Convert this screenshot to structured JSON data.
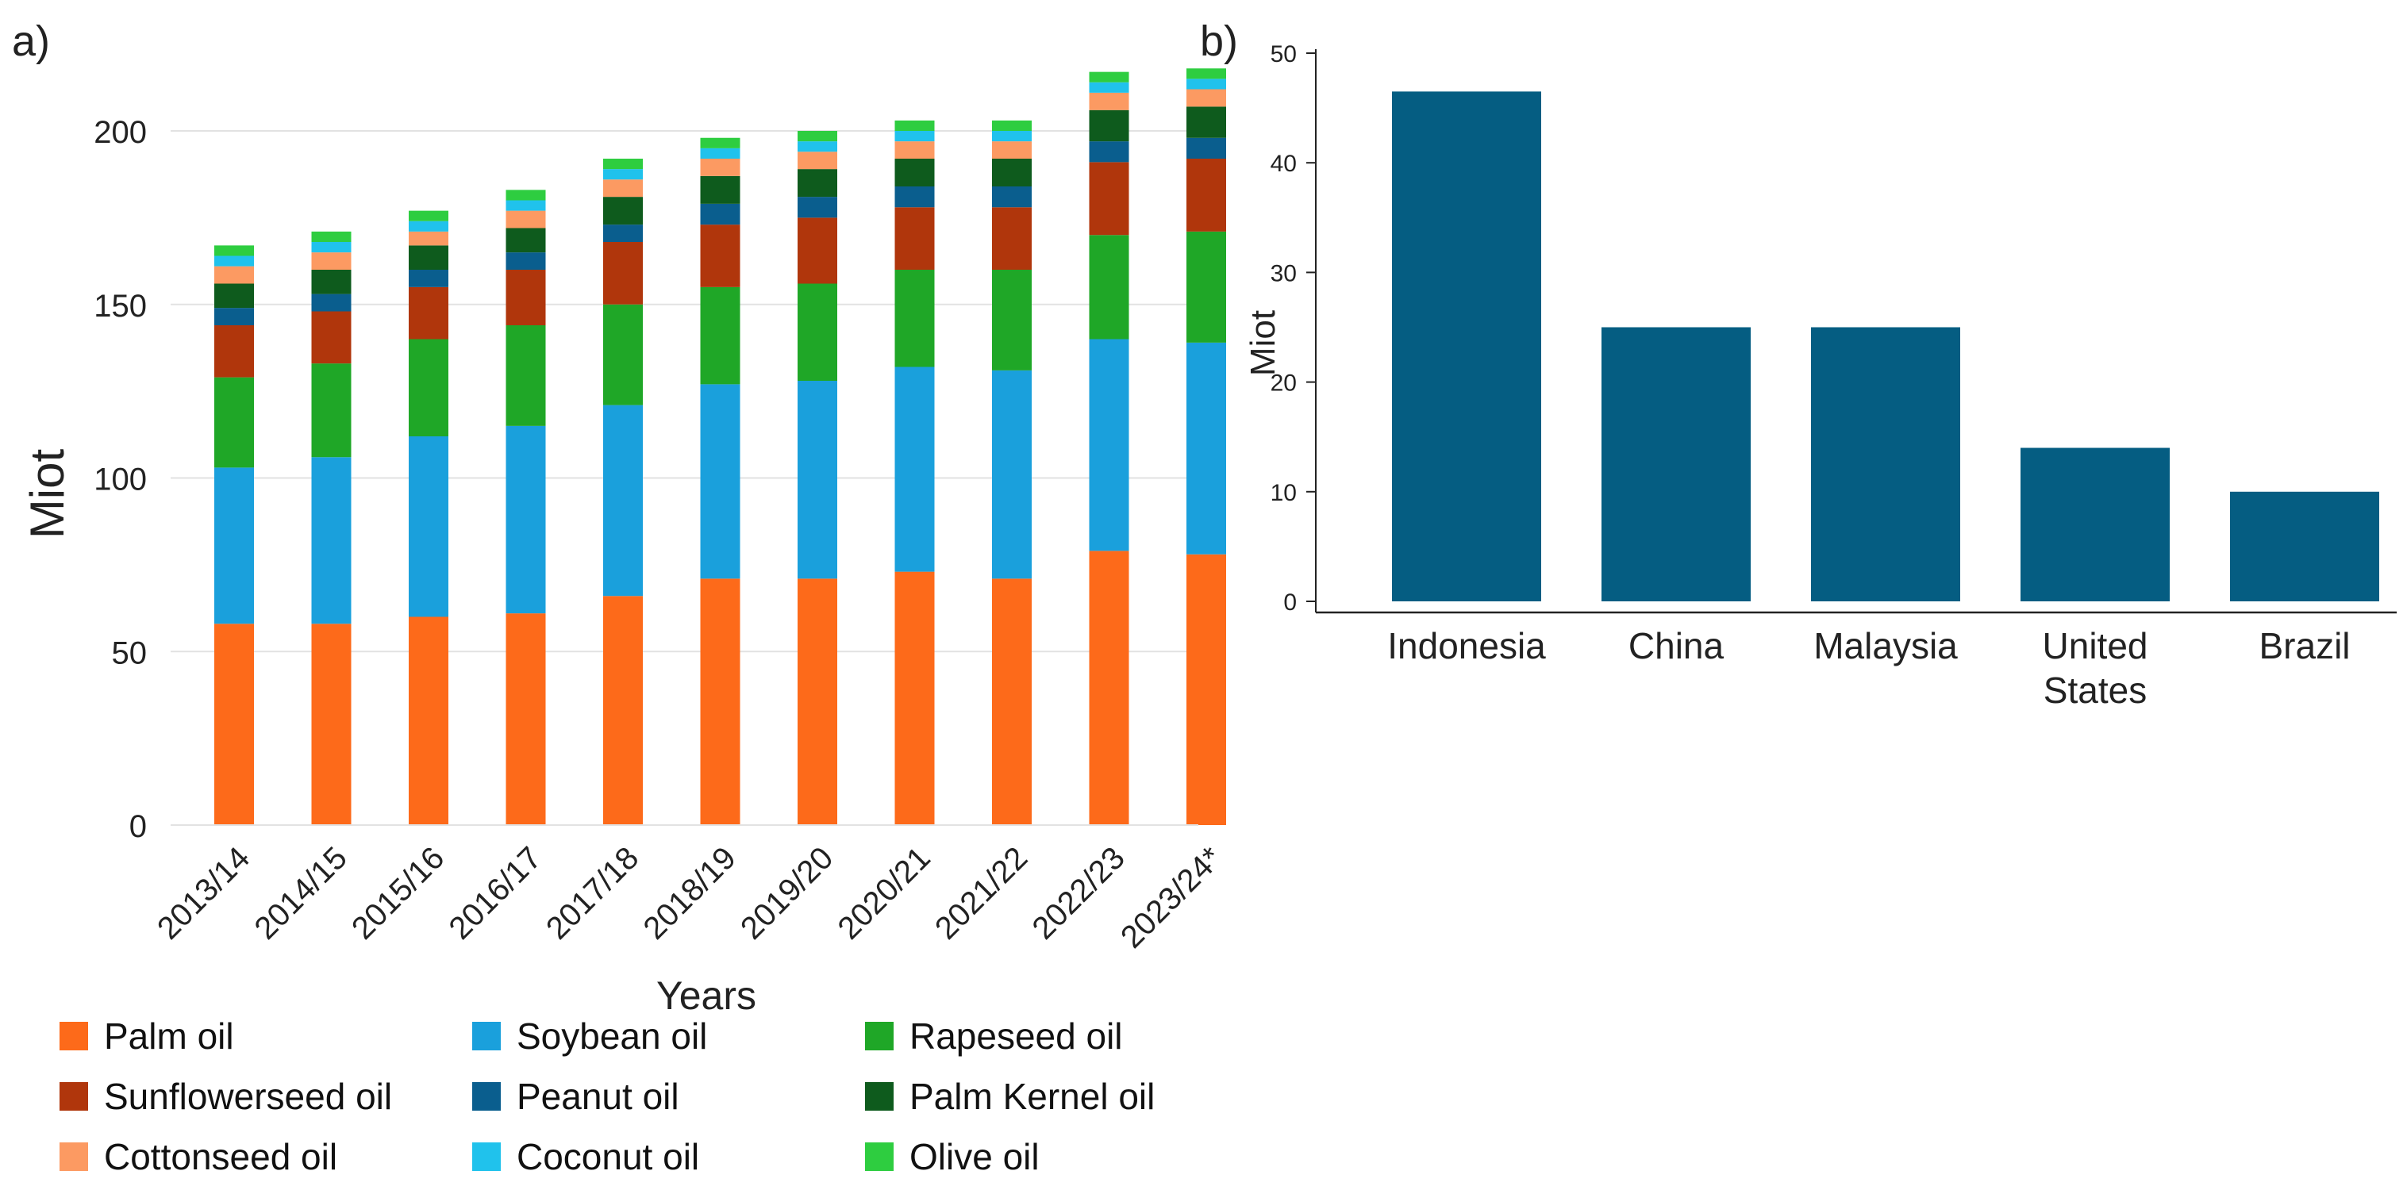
{
  "panel_labels": {
    "a": "a)",
    "b": "b)"
  },
  "colors": {
    "Palm oil": "#fd6a1a",
    "Soybean oil": "#1aa0dc",
    "Rapeseed oil": "#1fa727",
    "Sunflowerseed oil": "#b0360c",
    "Peanut oil": "#0a5e8e",
    "Palm Kernel oil": "#0e5b1d",
    "Cottonseed oil": "#fc9a62",
    "Coconut oil": "#20c2ec",
    "Olive oil": "#2ecd40",
    "country_bar": "#055d82"
  },
  "chart_data": [
    {
      "type": "bar",
      "stacked": true,
      "panel": "a)",
      "categories": [
        "2013/14",
        "2014/15",
        "2015/16",
        "2016/17",
        "2017/18",
        "2018/19",
        "2019/20",
        "2020/21",
        "2021/22",
        "2022/23",
        "2023/24*"
      ],
      "series": [
        {
          "name": "Palm oil",
          "values": [
            58,
            58,
            60,
            61,
            66,
            71,
            71,
            73,
            71,
            79,
            78
          ]
        },
        {
          "name": "Soybean oil",
          "values": [
            45,
            48,
            52,
            54,
            55,
            56,
            57,
            59,
            60,
            61,
            61
          ]
        },
        {
          "name": "Rapeseed oil",
          "values": [
            26,
            27,
            28,
            29,
            29,
            28,
            28,
            28,
            29,
            30,
            32
          ]
        },
        {
          "name": "Sunflowerseed oil",
          "values": [
            15,
            15,
            15,
            16,
            18,
            18,
            19,
            18,
            18,
            21,
            21
          ]
        },
        {
          "name": "Peanut oil",
          "values": [
            5,
            5,
            5,
            5,
            5,
            6,
            6,
            6,
            6,
            6,
            6
          ]
        },
        {
          "name": "Palm Kernel oil",
          "values": [
            7,
            7,
            7,
            7,
            8,
            8,
            8,
            8,
            8,
            9,
            9
          ]
        },
        {
          "name": "Cottonseed oil",
          "values": [
            5,
            5,
            4,
            5,
            5,
            5,
            5,
            5,
            5,
            5,
            5
          ]
        },
        {
          "name": "Coconut oil",
          "values": [
            3,
            3,
            3,
            3,
            3,
            3,
            3,
            3,
            3,
            3,
            3
          ]
        },
        {
          "name": "Olive oil",
          "values": [
            3,
            3,
            3,
            3,
            3,
            3,
            3,
            3,
            3,
            3,
            3
          ]
        }
      ],
      "title": "",
      "xlabel": "Years",
      "ylabel": "Miot",
      "ylim": [
        0,
        220
      ],
      "yticks": [
        0,
        50,
        100,
        150,
        200
      ],
      "grid": true,
      "legend": "bottom"
    },
    {
      "type": "bar",
      "panel": "b)",
      "categories": [
        "Indonesia",
        "China",
        "Malaysia",
        "United States",
        "Brazil"
      ],
      "values": [
        46.5,
        25,
        25,
        14,
        10
      ],
      "title": "",
      "xlabel": "",
      "ylabel": "Miot",
      "ylim": [
        0,
        50
      ],
      "yticks": [
        0,
        10,
        20,
        30,
        40,
        50
      ],
      "grid": false
    }
  ]
}
